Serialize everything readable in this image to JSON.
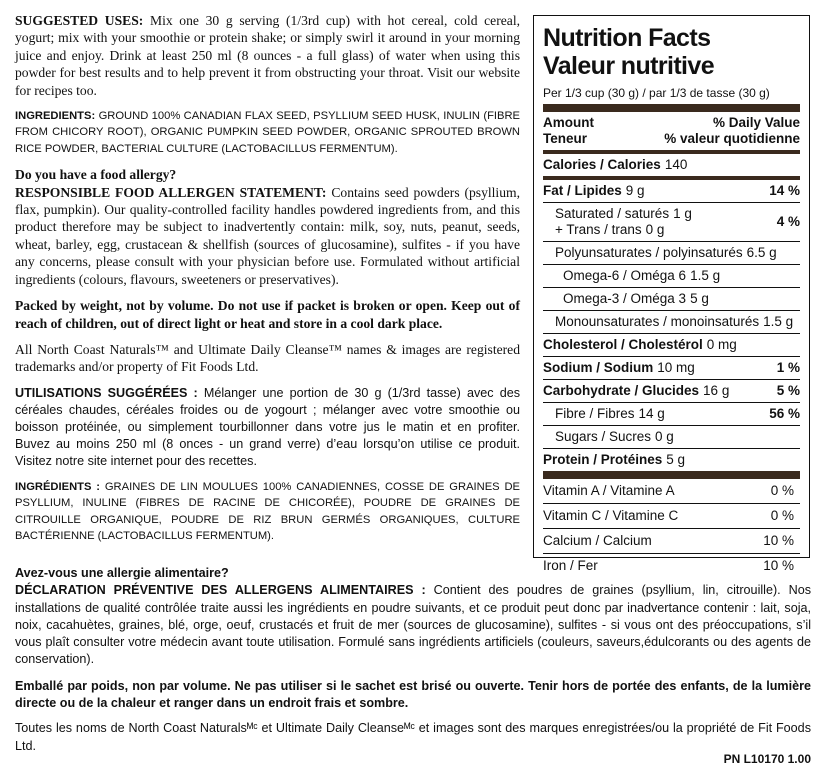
{
  "en": {
    "uses": {
      "label": "SUGGESTED USES:",
      "text": "Mix one 30 g serving (1/3rd cup) with hot cereal, cold cereal, yogurt; mix with your smoothie or protein shake; or simply swirl it around in your morning juice and enjoy. Drink at least 250 ml (8 ounces - a full glass) of water when using this powder for best results and to help prevent it from obstructing your throat. Visit our website for recipes too."
    },
    "ingredients": {
      "label": "INGREDIENTS:",
      "text": "GROUND 100% CANADIAN FLAX SEED, PSYLLIUM SEED HUSK, INULIN (FIBRE FROM CHICORY ROOT), ORGANIC PUMPKIN SEED POWDER, ORGANIC SPROUTED BROWN RICE POWDER, BACTERIAL CULTURE (LACTOBACILLUS FERMENTUM)."
    },
    "allergy_question": "Do you have a food allergy?",
    "allergen": {
      "label": "RESPONSIBLE FOOD ALLERGEN STATEMENT:",
      "text": "Contains seed powders (psyllium, flax, pumpkin). Our quality-controlled facility handles powdered ingredients from, and this product therefore may be subject to inadvertently contain: milk, soy, nuts, peanut, seeds, wheat, barley, egg, crustacean & shellfish (sources of glucosamine), sulfites - if you have any concerns, please consult with your physician before use. Formulated without artificial ingredients (colours, flavours, sweeteners or preservatives)."
    },
    "packed": "Packed by weight, not by volume. Do not use if packet is broken or open. Keep out of reach of children, out of direct light or heat and store in a cool dark place.",
    "trademark": "All North Coast Naturals™ and Ultimate Daily Cleanse™ names & images are registered trademarks and/or property of Fit Foods Ltd."
  },
  "fr": {
    "uses": {
      "label": "UTILISATIONS SUGGÉRÉES :",
      "text": "Mélanger une portion de 30 g (1/3rd tasse) avec des céréales chaudes, céréales froides ou de yogourt ; mélanger avec votre smoothie ou boisson protéinée, ou simplement tourbillonner dans votre jus le matin et en profiter. Buvez au moins 250 ml (8 onces - un grand verre) d’eau lorsqu’on utilise ce produit. Visitez notre site internet pour des recettes."
    },
    "ingredients": {
      "label": "INGRÉDIENTS :",
      "text": "GRAINES DE LIN MOULUES 100% CANADIENNES, COSSE DE GRAINES DE PSYLLIUM, INULINE (FIBRES DE RACINE DE CHICORÉE), POUDRE DE GRAINES DE CITROUILLE ORGANIQUE, POUDRE DE RIZ BRUN GERMÉS ORGANIQUES, CULTURE BACTÉRIENNE (LACTOBACILLUS FERMENTUM)."
    },
    "allergy_question": "Avez-vous une allergie alimentaire?",
    "allergen": {
      "label": "DÉCLARATION PRÉVENTIVE DES ALLERGENS ALIMENTAIRES :",
      "text": "Contient des poudres de graines (psyllium, lin, citrouille). Nos installations de qualité contrôlée traite aussi les ingrédients en poudre suivants, et ce produit peut donc par inadvertance contenir : lait, soja, noix, cacahuètes, graines, blé, orge, oeuf, crustacés et fruit de mer (sources de glucosamine), sulfites - si vous ont des préoccupations, s’il vous plaît consulter votre médecin avant toute utilisation. Formulé sans ingrédients artificiels (couleurs, saveurs,édulcorants ou des agents de conservation)."
    },
    "packed": "Emballé par poids, non par volume. Ne pas utiliser si le sachet est brisé ou ouverte. Tenir hors de portée des enfants, de la lumière directe ou de la chaleur et ranger dans un endroit frais et sombre.",
    "trademark": "Toutes les noms de North Coast Naturalsᴹᶜ et Ultimate Daily Cleanseᴹᶜ et images sont des marques enregistrées/ou la propriété de Fit Foods Ltd."
  },
  "nutrition": {
    "title_en": "Nutrition Facts",
    "title_fr": "Valeur nutritive",
    "serving": "Per 1/3 cup (30 g) / par 1/3 de tasse (30 g)",
    "header": {
      "amount": "Amount",
      "dv": "% Daily Value",
      "teneur": "Teneur",
      "vq": "% valeur quotidienne"
    },
    "calories": {
      "label": "Calories / Calories",
      "amount": "140"
    },
    "fat": {
      "label": "Fat / Lipides",
      "amount": "9 g",
      "dv": "14 %"
    },
    "saturated": {
      "label": "Saturated / saturés",
      "amount": "1 g",
      "trans_label": "+ Trans / trans",
      "trans_amount": "0 g",
      "dv": "4 %"
    },
    "poly": {
      "label": "Polyunsaturates / polyinsaturés",
      "amount": "6.5 g"
    },
    "omega6": {
      "label": "Omega-6 / Oméga 6",
      "amount": "1.5 g"
    },
    "omega3": {
      "label": "Omega-3 / Oméga 3",
      "amount": "5 g"
    },
    "mono": {
      "label": "Monounsaturates / monoinsaturés",
      "amount": "1.5 g"
    },
    "cholesterol": {
      "label": "Cholesterol / Cholestérol",
      "amount": "0 mg"
    },
    "sodium": {
      "label": "Sodium / Sodium",
      "amount": "10 mg",
      "dv": "1 %"
    },
    "carbohydrate": {
      "label": "Carbohydrate / Glucides",
      "amount": "16 g",
      "dv": "5 %"
    },
    "fibre": {
      "label": "Fibre / Fibres",
      "amount": "14 g",
      "dv": "56 %"
    },
    "sugars": {
      "label": "Sugars / Sucres",
      "amount": "0 g"
    },
    "protein": {
      "label": "Protein / Protéines",
      "amount": "5 g"
    },
    "vitamins": [
      {
        "label": "Vitamin A / Vitamine A",
        "dv": "0 %"
      },
      {
        "label": "Vitamin C / Vitamine C",
        "dv": "0 %"
      },
      {
        "label": "Calcium / Calcium",
        "dv": "10 %"
      },
      {
        "label": "Iron / Fer",
        "dv": "10 %"
      }
    ]
  },
  "part_number": "PN L10170 1.00"
}
